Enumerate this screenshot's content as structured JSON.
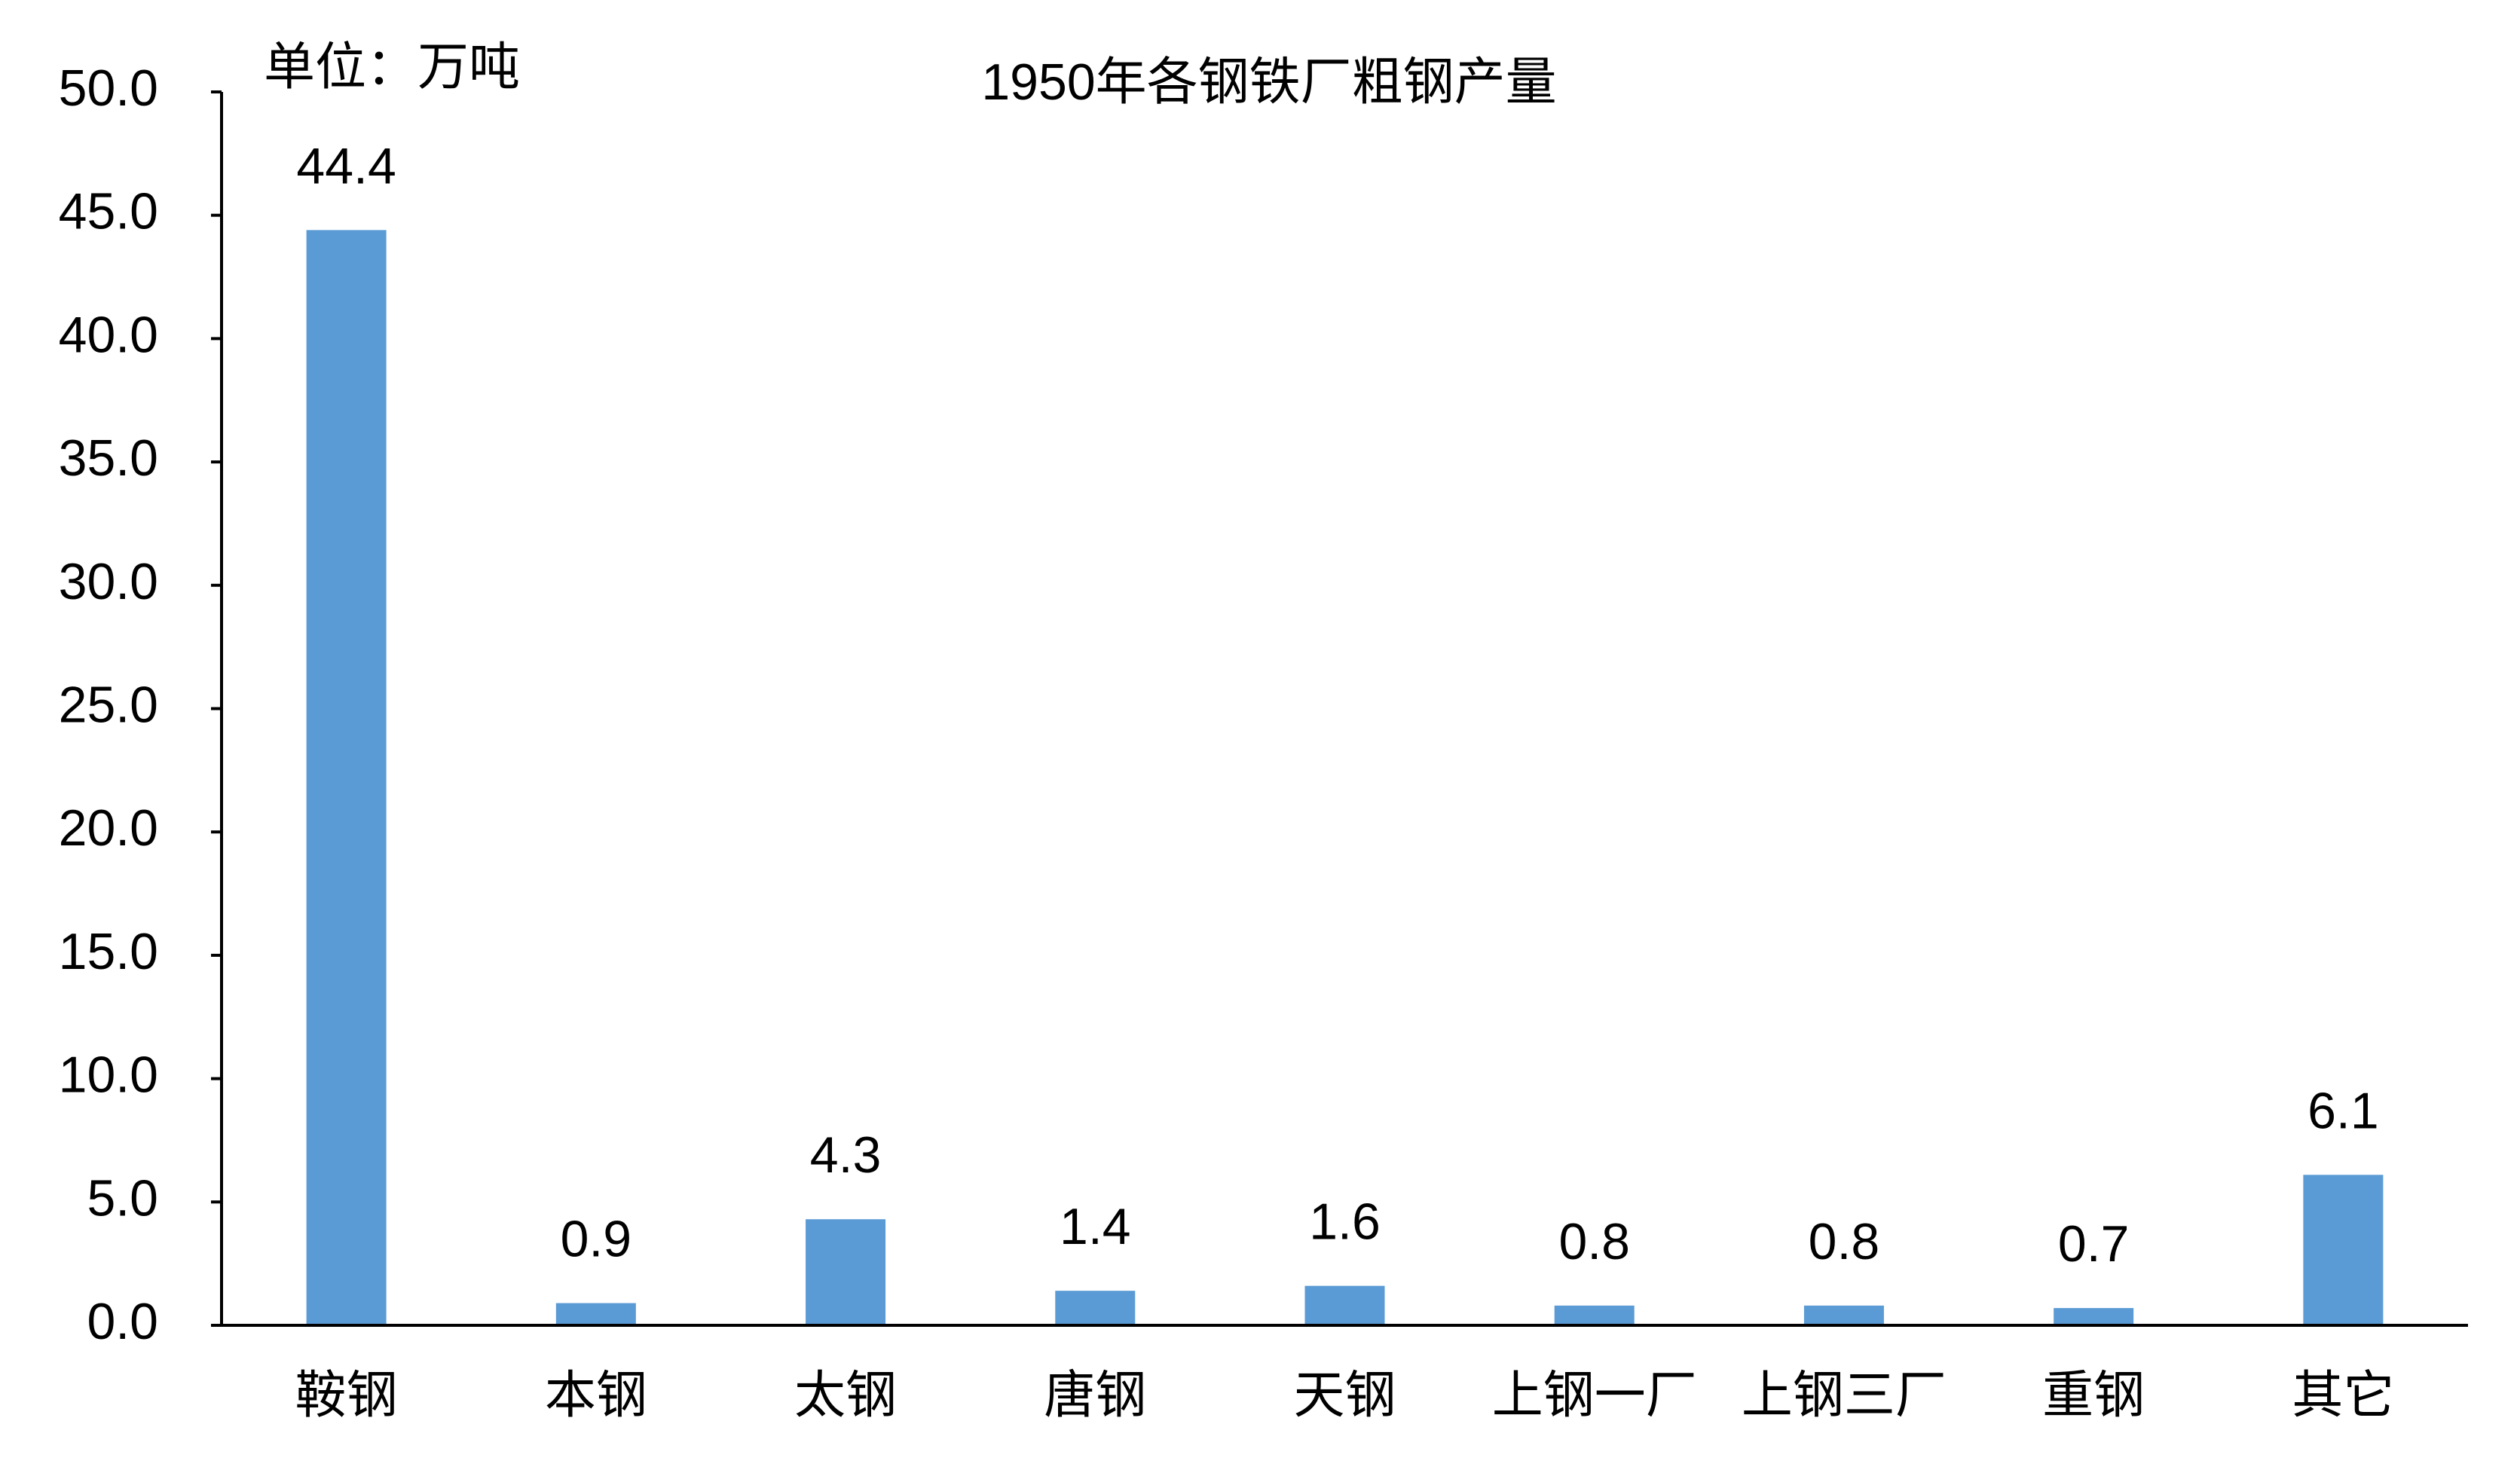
{
  "chart_data": {
    "type": "bar",
    "title": "1950年各钢铁厂粗钢产量",
    "y_label": "单位：万吨",
    "categories": [
      "鞍钢",
      "本钢",
      "太钢",
      "唐钢",
      "天钢",
      "上钢一厂",
      "上钢三厂",
      "重钢",
      "其它"
    ],
    "values": [
      44.4,
      0.9,
      4.3,
      1.4,
      1.6,
      0.8,
      0.8,
      0.7,
      6.1
    ],
    "color": "#5b9bd5",
    "ylim": [
      0,
      50
    ],
    "yticks": [
      {
        "value": 0,
        "label": "0.0"
      },
      {
        "value": 5,
        "label": "5.0"
      },
      {
        "value": 10,
        "label": "10.0"
      },
      {
        "value": 15,
        "label": "15.0"
      },
      {
        "value": 20,
        "label": "20.0"
      },
      {
        "value": 25,
        "label": "25.0"
      },
      {
        "value": 30,
        "label": "30.0"
      },
      {
        "value": 35,
        "label": "35.0"
      },
      {
        "value": 40,
        "label": "40.0"
      },
      {
        "value": 45,
        "label": "45.0"
      },
      {
        "value": 50,
        "label": "50.0"
      }
    ],
    "grid": false
  }
}
